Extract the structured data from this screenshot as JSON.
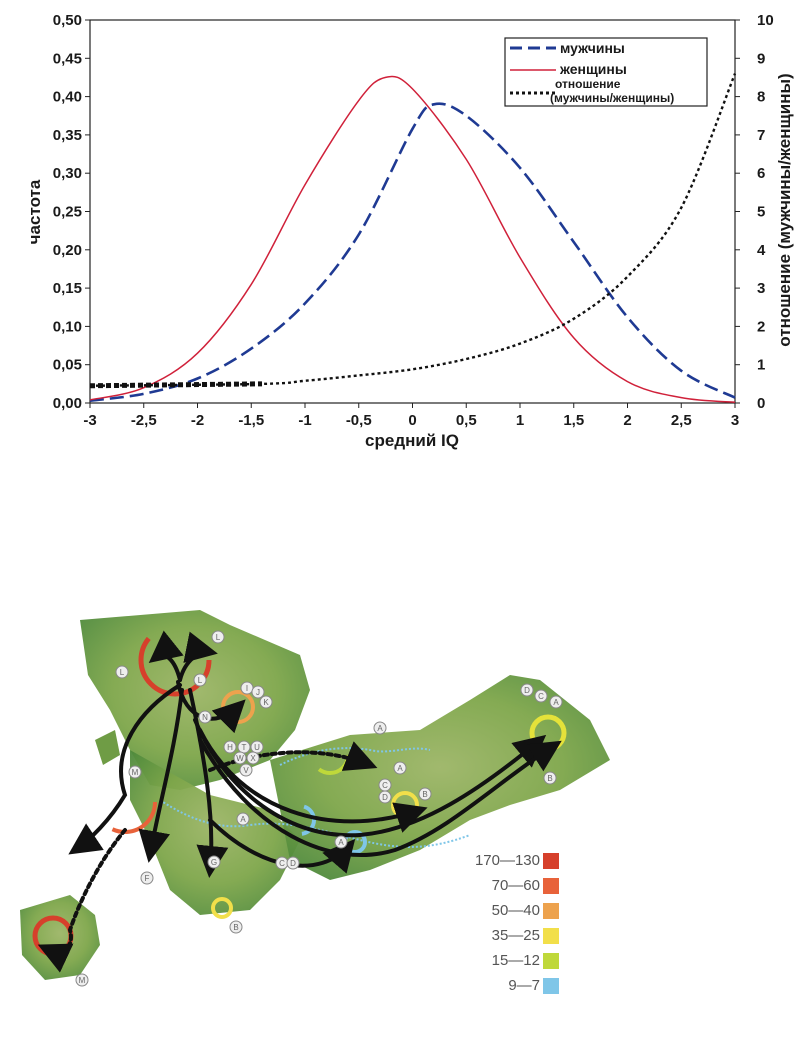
{
  "chart_data": {
    "type": "line",
    "xlabel": "средний IQ",
    "ylabel": "частота",
    "y2label": "отношение (мужчины/женщины)",
    "xlim": [
      -3,
      3
    ],
    "ylim": [
      0,
      0.5
    ],
    "y2lim": [
      0,
      10
    ],
    "x_ticks": [
      "-3",
      "-2,5",
      "-2",
      "-1,5",
      "-1",
      "-0,5",
      "0",
      "0,5",
      "1",
      "1,5",
      "2",
      "2,5",
      "3"
    ],
    "y_ticks": [
      "0,00",
      "0,05",
      "0,10",
      "0,15",
      "0,20",
      "0,25",
      "0,30",
      "0,35",
      "0,40",
      "0,45",
      "0,50"
    ],
    "y2_ticks": [
      "0",
      "1",
      "2",
      "3",
      "4",
      "5",
      "6",
      "7",
      "8",
      "9",
      "10"
    ],
    "legend_placement": "top-right",
    "series": [
      {
        "name": "мужчины",
        "axis": "left",
        "style": "dashed",
        "color": "#1f3a93",
        "x": [
          -3,
          -2.5,
          -2,
          -1.5,
          -1,
          -0.5,
          0,
          0.2,
          0.5,
          1,
          1.5,
          2,
          2.5,
          3
        ],
        "y": [
          0.003,
          0.012,
          0.032,
          0.071,
          0.13,
          0.22,
          0.358,
          0.39,
          0.375,
          0.307,
          0.21,
          0.112,
          0.042,
          0.007
        ]
      },
      {
        "name": "женщины",
        "axis": "left",
        "style": "solid",
        "color": "#d0213a",
        "x": [
          -3,
          -2.5,
          -2,
          -1.5,
          -1,
          -0.5,
          -0.25,
          0,
          0.5,
          1,
          1.5,
          2,
          2.5,
          3
        ],
        "y": [
          0.004,
          0.02,
          0.065,
          0.155,
          0.285,
          0.395,
          0.425,
          0.41,
          0.318,
          0.19,
          0.085,
          0.028,
          0.007,
          0.001
        ]
      },
      {
        "name": "отношение\n(мужчины/женщины)",
        "axis": "right",
        "style": "dotted",
        "color": "#111111",
        "x": [
          -3,
          -1.4,
          -1,
          -0.5,
          0,
          0.5,
          1,
          1.5,
          2,
          2.5,
          3
        ],
        "y": [
          0.45,
          0.5,
          0.58,
          0.72,
          0.88,
          1.15,
          1.55,
          2.2,
          3.3,
          5.1,
          8.6
        ]
      }
    ]
  },
  "map": {
    "legend": [
      {
        "label": "170—130",
        "color": "#d6402b"
      },
      {
        "label": "70—60",
        "color": "#e8623a"
      },
      {
        "label": "50—40",
        "color": "#eda24d"
      },
      {
        "label": "35—25",
        "color": "#f2df4a"
      },
      {
        "label": "15—12",
        "color": "#bfd83a"
      },
      {
        "label": "9—7",
        "color": "#7fc6e8"
      }
    ],
    "site_labels": [
      "L",
      "L",
      "L",
      "I",
      "J",
      "K",
      "N",
      "H",
      "T",
      "U",
      "W",
      "X",
      "V",
      "M",
      "A",
      "F",
      "G",
      "B",
      "C",
      "D",
      "A",
      "C",
      "D",
      "A",
      "B",
      "D",
      "C",
      "A",
      "B",
      "M",
      "A"
    ]
  }
}
